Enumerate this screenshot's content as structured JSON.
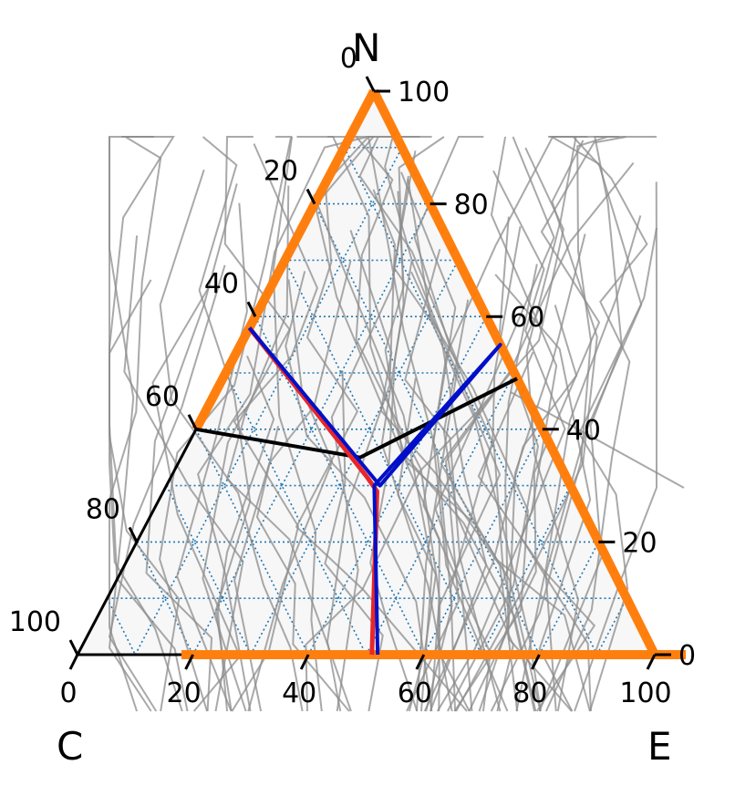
{
  "chart_data": {
    "type": "ternary",
    "corner_labels": {
      "top": "N",
      "left": "C",
      "right": "E"
    },
    "ticks": {
      "bottom": [
        "0",
        "20",
        "40",
        "60",
        "80",
        "100"
      ],
      "right": [
        "0",
        "20",
        "40",
        "60",
        "80",
        "100"
      ],
      "left": [
        "0",
        "20",
        "40",
        "60",
        "80",
        "100"
      ]
    },
    "grid": true,
    "colors": {
      "background_fill": "#f7f7f7",
      "grid": "#1f77b4",
      "highlight_edges": "#ff7f0e",
      "sample_lines": "#8c8c8c",
      "red_path": "#e8262a",
      "blue_path": "#0010c8",
      "black_path": "#000000"
    },
    "highlighted_edges": [
      {
        "edge": "top-left",
        "from": [
          0.0,
          1.0,
          0.0
        ],
        "to": [
          0.6,
          0.4,
          0.0
        ]
      },
      {
        "edge": "top-right",
        "from": [
          0.0,
          1.0,
          0.0
        ],
        "to": [
          0.0,
          0.0,
          1.0
        ]
      },
      {
        "edge": "bottom",
        "from": [
          0.82,
          0.0,
          0.18
        ],
        "to": [
          0.0,
          0.0,
          1.0
        ]
      }
    ],
    "red_path": [
      [
        0.42,
        0.58,
        0.0
      ],
      [
        0.345,
        0.315,
        0.34
      ],
      [
        0.34,
        0.29,
        0.37
      ],
      [
        0.49,
        0.0,
        0.51
      ]
    ],
    "blue_path": [
      [
        0.42,
        0.58,
        0.0
      ],
      [
        0.33,
        0.3,
        0.37
      ],
      [
        0.0,
        0.55,
        0.45
      ],
      [
        0.34,
        0.3,
        0.36
      ],
      [
        0.48,
        0.0,
        0.52
      ]
    ],
    "black_path": [
      [
        0.6,
        0.4,
        0.0
      ],
      [
        0.34,
        0.35,
        0.31
      ],
      [
        0.0,
        0.49,
        0.51
      ]
    ]
  }
}
